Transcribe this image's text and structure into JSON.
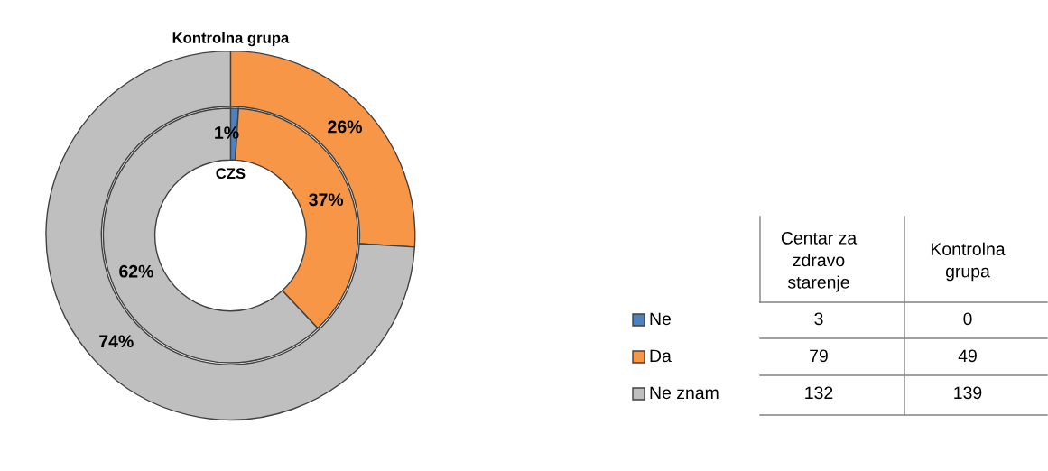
{
  "chart_data": [
    {
      "type": "donut",
      "categories": [
        "Ne",
        "Da",
        "Ne znam"
      ],
      "colors": [
        "#4f81bd",
        "#f79646",
        "#bfbfbf"
      ],
      "series": [
        {
          "name": "CZS",
          "values": [
            1,
            37,
            62
          ],
          "value_labels": [
            "1%",
            "37%",
            "62%"
          ]
        },
        {
          "name": "Kontrolna grupa",
          "values": [
            0,
            26,
            74
          ],
          "value_labels": [
            null,
            "26%",
            "74%"
          ]
        }
      ],
      "legend": "right"
    },
    {
      "type": "other",
      "annotations": [
        "Centar za zdravo starenje",
        "Kontrolna grupa",
        "3",
        "0",
        "79",
        "49",
        "132",
        "139"
      ]
    }
  ]
}
